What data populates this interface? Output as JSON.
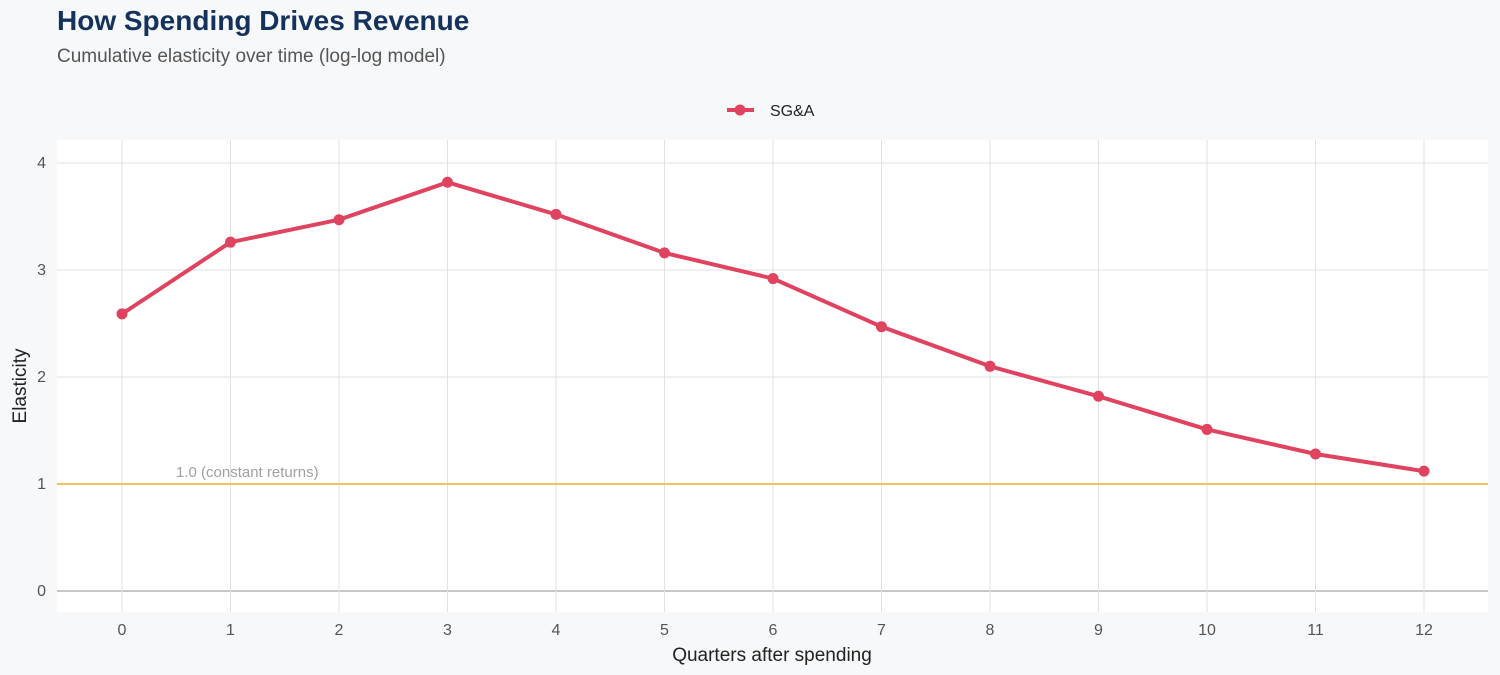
{
  "title": "How Spending Drives Revenue",
  "subtitle": "Cumulative elasticity over time (log-log model)",
  "chart_data": {
    "type": "line",
    "x": [
      0,
      1,
      2,
      3,
      4,
      5,
      6,
      7,
      8,
      9,
      10,
      11,
      12
    ],
    "series": [
      {
        "name": "SG&A",
        "values": [
          2.59,
          3.26,
          3.47,
          3.82,
          3.52,
          3.16,
          2.92,
          2.47,
          2.1,
          1.82,
          1.51,
          1.28,
          1.12
        ],
        "color": "#e0435f"
      }
    ],
    "xlabel": "Quarters after spending",
    "ylabel": "Elasticity",
    "xlim": [
      0,
      12
    ],
    "ylim": [
      0,
      4
    ],
    "yticks": [
      0,
      1,
      2,
      3,
      4
    ],
    "xticks": [
      0,
      1,
      2,
      3,
      4,
      5,
      6,
      7,
      8,
      9,
      10,
      11,
      12
    ],
    "reference_line": {
      "y": 1.0,
      "label": "1.0 (constant returns)",
      "color": "#f5c15a"
    },
    "grid": true,
    "legend_position": "top"
  }
}
